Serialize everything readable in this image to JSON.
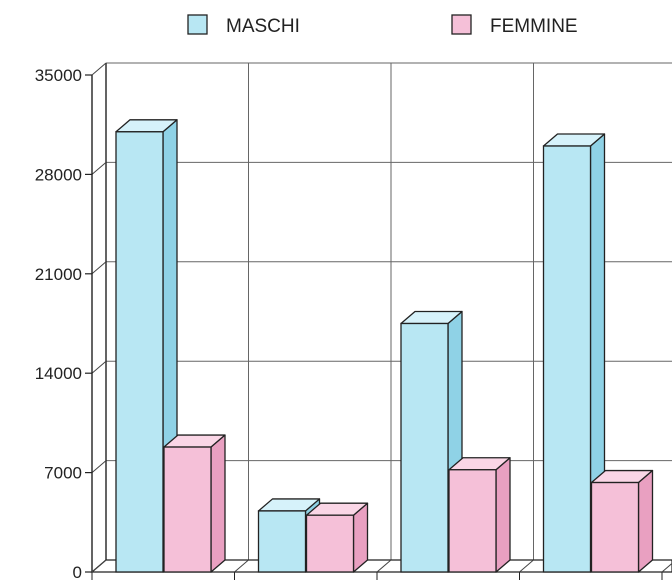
{
  "chart_data": {
    "type": "bar",
    "title": "",
    "xlabel": "",
    "ylabel": "",
    "ylim": [
      0,
      35000
    ],
    "y_ticks": [
      0,
      7000,
      14000,
      21000,
      28000,
      35000
    ],
    "y_tick_labels": [
      "0",
      "7000",
      "14000",
      "21000",
      "28000",
      "35000"
    ],
    "categories": [
      "",
      "",
      "",
      ""
    ],
    "series": [
      {
        "name": "MASCHI",
        "color": "#b8e7f3",
        "side_color": "#8fd2e6",
        "top_color": "#d6f2fa",
        "values": [
          31000,
          4300,
          17500,
          30000
        ]
      },
      {
        "name": "FEMMINE",
        "color": "#f5c0d8",
        "side_color": "#e9a0c1",
        "top_color": "#fad6e6",
        "values": [
          8800,
          4000,
          7200,
          6300
        ]
      }
    ],
    "grid": true,
    "legend_position": "top",
    "style": "3d"
  }
}
